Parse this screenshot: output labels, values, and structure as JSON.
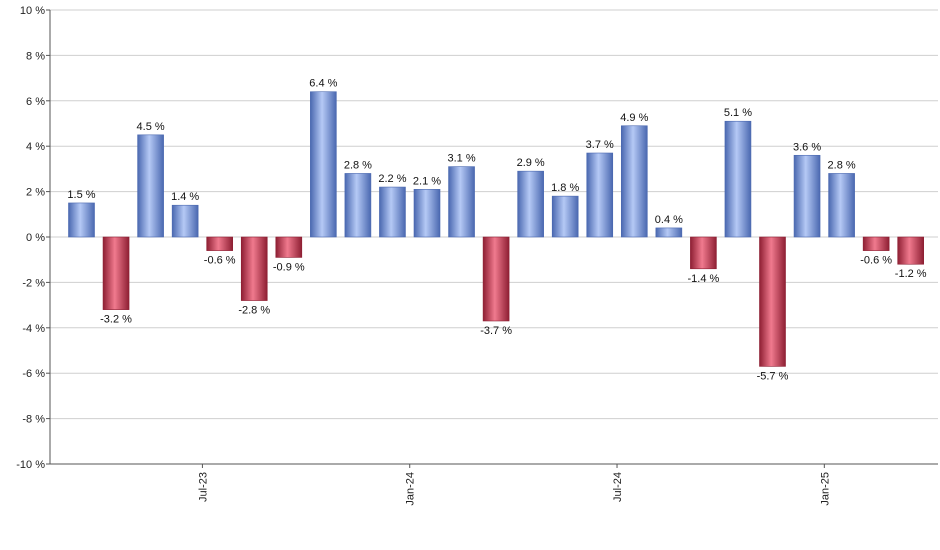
{
  "chart_data": {
    "type": "bar",
    "y_unit_suffix": " %",
    "ylim": [
      -10,
      10
    ],
    "y_ticks": [
      10,
      8,
      6,
      4,
      2,
      0,
      -2,
      -4,
      -6,
      -8,
      -10
    ],
    "y_tick_labels": [
      "10 %",
      "8 %",
      "6 %",
      "4 %",
      "2 %",
      "0 %",
      "-2 %",
      "-4 %",
      "-6 %",
      "-8 %",
      "-10 %"
    ],
    "grid": true,
    "values": [
      1.5,
      -3.2,
      4.5,
      1.4,
      -0.6,
      -2.8,
      -0.9,
      6.4,
      2.8,
      2.2,
      2.1,
      3.1,
      -3.7,
      2.9,
      1.8,
      3.7,
      4.9,
      0.4,
      -1.4,
      5.1,
      -5.7,
      3.6,
      2.8,
      -0.6,
      -1.2
    ],
    "data_labels": [
      "1.5 %",
      "-3.2 %",
      "4.5 %",
      "1.4 %",
      "-0.6 %",
      "-2.8 %",
      "-0.9 %",
      "6.4 %",
      "2.8 %",
      "2.2 %",
      "2.1 %",
      "3.1 %",
      "-3.7 %",
      "2.9 %",
      "1.8 %",
      "3.7 %",
      "4.9 %",
      "0.4 %",
      "-1.4 %",
      "5.1 %",
      "-5.7 %",
      "3.6 %",
      "2.8 %",
      "-0.6 %",
      "-1.2 %"
    ],
    "x_ticks": [
      {
        "label": "Jul-23",
        "index": 3.5
      },
      {
        "label": "Jan-24",
        "index": 9.5
      },
      {
        "label": "Jul-24",
        "index": 15.5
      },
      {
        "label": "Jan-25",
        "index": 21.5
      }
    ],
    "colors": {
      "positive": "#7f9fe0",
      "positive_light": "#b5c9f5",
      "positive_dark": "#4a68b0",
      "negative": "#d64a60",
      "negative_light": "#f07a8e",
      "negative_dark": "#8e1f33",
      "axis": "#555555",
      "grid": "#cfcfcf"
    }
  }
}
